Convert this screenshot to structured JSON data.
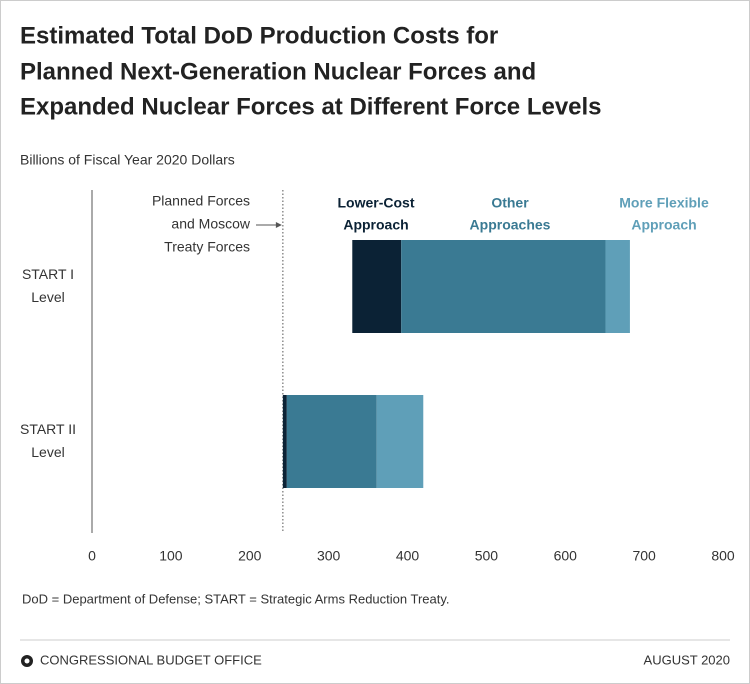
{
  "chart_data": {
    "type": "floating-stacked-barh",
    "title": [
      "Estimated Total DoD Production Costs for",
      "Planned Next-Generation Nuclear Forces and",
      "Expanded Nuclear Forces at Different Force Levels"
    ],
    "subtitle": "Billions of Fiscal Year 2020 Dollars",
    "categories": [
      [
        "START I",
        "Level"
      ],
      [
        "START II",
        "Level"
      ]
    ],
    "starts": [
      330,
      242
    ],
    "series": [
      {
        "name": [
          "Lower-Cost",
          "Approach"
        ],
        "color": "#0b2235",
        "values": [
          62,
          5
        ]
      },
      {
        "name": [
          "Other",
          "Approaches"
        ],
        "color": "#3a7a93",
        "values": [
          259,
          114
        ]
      },
      {
        "name": [
          "More Flexible",
          "Approach"
        ],
        "color": "#5f9fb8",
        "values": [
          31,
          59
        ]
      }
    ],
    "reference_line": {
      "value": 242,
      "label": [
        "Planned Forces",
        "and Moscow",
        "Treaty Forces"
      ]
    },
    "xlim": [
      0,
      800
    ],
    "xticks": [
      0,
      100,
      200,
      300,
      400,
      500,
      600,
      700,
      800
    ],
    "note": "DoD = Department of Defense; START = Strategic Arms Reduction Treaty.",
    "footer": {
      "source": "CONGRESSIONAL BUDGET OFFICE",
      "date": "AUGUST 2020"
    }
  }
}
